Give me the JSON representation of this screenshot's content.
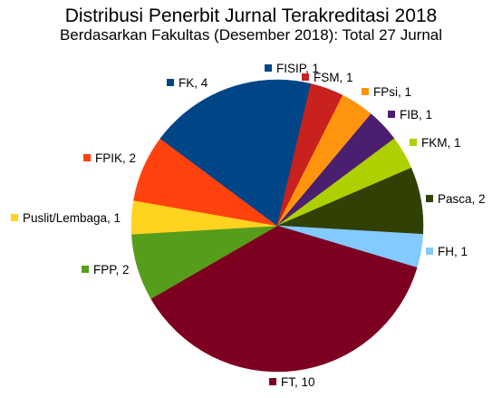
{
  "chart_data": {
    "type": "pie",
    "title": "Distribusi Penerbit Jurnal Terakreditasi 2018",
    "subtitle": "Berdasarkan Fakultas (Desember 2018): Total 27 Jurnal",
    "total": 27,
    "legend": "none",
    "start_angle_deg": 0,
    "direction": "clockwise",
    "slices": [
      {
        "label": "FISIP, 1",
        "name": "FISIP",
        "value": 1,
        "color": "#004586"
      },
      {
        "label": "FSM, 1",
        "name": "FSM",
        "value": 1,
        "color": "#c9211e"
      },
      {
        "label": "FPsi, 1",
        "name": "FPsi",
        "value": 1,
        "color": "#ff950e"
      },
      {
        "label": "FIB, 1",
        "name": "FIB",
        "value": 1,
        "color": "#4b1f6f"
      },
      {
        "label": "FKM, 1",
        "name": "FKM",
        "value": 1,
        "color": "#aecf00"
      },
      {
        "label": "Pasca, 2",
        "name": "Pasca",
        "value": 2,
        "color": "#314004"
      },
      {
        "label": "FH, 1",
        "name": "FH",
        "value": 1,
        "color": "#83caff"
      },
      {
        "label": "FT, 10",
        "name": "FT",
        "value": 10,
        "color": "#7e0021"
      },
      {
        "label": "FPP, 2",
        "name": "FPP",
        "value": 2,
        "color": "#579d1c"
      },
      {
        "label": "Puslit/Lembaga, 1",
        "name": "Puslit/Lembaga",
        "value": 1,
        "color": "#ffd320"
      },
      {
        "label": "FPIK, 2",
        "name": "FPIK",
        "value": 2,
        "color": "#ff420e"
      },
      {
        "label": "FK, 4",
        "name": "FK",
        "value": 4,
        "color": "#004586"
      }
    ]
  }
}
